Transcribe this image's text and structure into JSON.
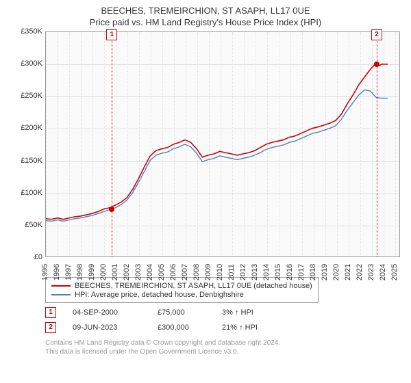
{
  "title": "BEECHES, TREMEIRCHION, ST ASAPH, LL17 0UE",
  "subtitle": "Price paid vs. HM Land Registry's House Price Index (HPI)",
  "chart": {
    "type": "line",
    "background_color": "#fafafa",
    "border_color": "#999999",
    "grid_color": "#e0e0e0",
    "ylim": [
      0,
      350
    ],
    "ytick_step": 50,
    "ytick_labels": [
      "£0",
      "£50K",
      "£100K",
      "£150K",
      "£200K",
      "£250K",
      "£300K",
      "£350K"
    ],
    "x_years": [
      1995,
      1996,
      1997,
      1998,
      1999,
      2000,
      2001,
      2002,
      2003,
      2004,
      2005,
      2006,
      2007,
      2008,
      2009,
      2010,
      2011,
      2012,
      2013,
      2014,
      2015,
      2016,
      2017,
      2018,
      2019,
      2020,
      2021,
      2022,
      2023,
      2024,
      2025
    ],
    "xlim": [
      1995,
      2025.5
    ],
    "series": [
      {
        "name": "BEECHES, TREMEIRCHION, ST ASAPH, LL17 0UE (detached house)",
        "color": "#cc0000",
        "line_width": 1.6,
        "values": [
          [
            1995,
            59
          ],
          [
            1995.5,
            58
          ],
          [
            1996,
            60
          ],
          [
            1996.5,
            58
          ],
          [
            1997,
            60
          ],
          [
            1997.5,
            62
          ],
          [
            1998,
            63
          ],
          [
            1998.5,
            65
          ],
          [
            1999,
            67
          ],
          [
            1999.5,
            70
          ],
          [
            2000,
            74
          ],
          [
            2000.5,
            76
          ],
          [
            2001,
            80
          ],
          [
            2001.5,
            85
          ],
          [
            2002,
            92
          ],
          [
            2002.5,
            105
          ],
          [
            2003,
            122
          ],
          [
            2003.5,
            140
          ],
          [
            2004,
            157
          ],
          [
            2004.5,
            165
          ],
          [
            2005,
            168
          ],
          [
            2005.5,
            170
          ],
          [
            2006,
            175
          ],
          [
            2006.5,
            178
          ],
          [
            2007,
            182
          ],
          [
            2007.5,
            178
          ],
          [
            2008,
            168
          ],
          [
            2008.5,
            155
          ],
          [
            2009,
            158
          ],
          [
            2009.5,
            160
          ],
          [
            2010,
            164
          ],
          [
            2010.5,
            162
          ],
          [
            2011,
            160
          ],
          [
            2011.5,
            158
          ],
          [
            2012,
            160
          ],
          [
            2012.5,
            162
          ],
          [
            2013,
            165
          ],
          [
            2013.5,
            170
          ],
          [
            2014,
            175
          ],
          [
            2014.5,
            178
          ],
          [
            2015,
            180
          ],
          [
            2015.5,
            182
          ],
          [
            2016,
            186
          ],
          [
            2016.5,
            188
          ],
          [
            2017,
            192
          ],
          [
            2017.5,
            196
          ],
          [
            2018,
            200
          ],
          [
            2018.5,
            202
          ],
          [
            2019,
            205
          ],
          [
            2019.5,
            208
          ],
          [
            2020,
            212
          ],
          [
            2020.5,
            222
          ],
          [
            2021,
            238
          ],
          [
            2021.5,
            252
          ],
          [
            2022,
            268
          ],
          [
            2022.5,
            280
          ],
          [
            2023,
            292
          ],
          [
            2023.4,
            300
          ],
          [
            2023.8,
            298
          ],
          [
            2024,
            300
          ],
          [
            2024.5,
            300
          ]
        ]
      },
      {
        "name": "HPI: Average price, detached house, Denbighshire",
        "color": "#4a7ec8",
        "line_width": 1.4,
        "values": [
          [
            1995,
            56
          ],
          [
            1995.5,
            55
          ],
          [
            1996,
            57
          ],
          [
            1996.5,
            55
          ],
          [
            1997,
            57
          ],
          [
            1997.5,
            59
          ],
          [
            1998,
            60
          ],
          [
            1998.5,
            62
          ],
          [
            1999,
            64
          ],
          [
            1999.5,
            67
          ],
          [
            2000,
            70
          ],
          [
            2000.5,
            73
          ],
          [
            2001,
            76
          ],
          [
            2001.5,
            81
          ],
          [
            2002,
            88
          ],
          [
            2002.5,
            100
          ],
          [
            2003,
            116
          ],
          [
            2003.5,
            133
          ],
          [
            2004,
            150
          ],
          [
            2004.5,
            158
          ],
          [
            2005,
            161
          ],
          [
            2005.5,
            163
          ],
          [
            2006,
            168
          ],
          [
            2006.5,
            171
          ],
          [
            2007,
            175
          ],
          [
            2007.5,
            171
          ],
          [
            2008,
            161
          ],
          [
            2008.5,
            148
          ],
          [
            2009,
            151
          ],
          [
            2009.5,
            153
          ],
          [
            2010,
            157
          ],
          [
            2010.5,
            155
          ],
          [
            2011,
            153
          ],
          [
            2011.5,
            151
          ],
          [
            2012,
            153
          ],
          [
            2012.5,
            155
          ],
          [
            2013,
            158
          ],
          [
            2013.5,
            162
          ],
          [
            2014,
            167
          ],
          [
            2014.5,
            170
          ],
          [
            2015,
            172
          ],
          [
            2015.5,
            174
          ],
          [
            2016,
            178
          ],
          [
            2016.5,
            180
          ],
          [
            2017,
            184
          ],
          [
            2017.5,
            188
          ],
          [
            2018,
            192
          ],
          [
            2018.5,
            194
          ],
          [
            2019,
            197
          ],
          [
            2019.5,
            200
          ],
          [
            2020,
            204
          ],
          [
            2020.5,
            214
          ],
          [
            2021,
            228
          ],
          [
            2021.5,
            240
          ],
          [
            2022,
            252
          ],
          [
            2022.5,
            260
          ],
          [
            2023,
            258
          ],
          [
            2023.5,
            248
          ],
          [
            2024,
            247
          ],
          [
            2024.5,
            247
          ]
        ]
      }
    ],
    "markers": [
      {
        "label": "1",
        "x": 2000.68,
        "y": 75
      },
      {
        "label": "2",
        "x": 2023.44,
        "y": 300
      }
    ]
  },
  "legend": {
    "items": [
      {
        "color": "#cc0000",
        "label": "BEECHES, TREMEIRCHION, ST ASAPH, LL17 0UE (detached house)"
      },
      {
        "color": "#4a7ec8",
        "label": "HPI: Average price, detached house, Denbighshire"
      }
    ]
  },
  "notes": [
    {
      "marker": "1",
      "date": "04-SEP-2000",
      "price": "£75,000",
      "pct": "3%",
      "arrow": "↑",
      "suffix": "HPI"
    },
    {
      "marker": "2",
      "date": "09-JUN-2023",
      "price": "£300,000",
      "pct": "21%",
      "arrow": "↑",
      "suffix": "HPI"
    }
  ],
  "footer": {
    "line1": "Contains HM Land Registry data © Crown copyright and database right 2024.",
    "line2": "This data is licensed under the Open Government Licence v3.0."
  },
  "style": {
    "title_fontsize": 13,
    "axis_fontsize": 11,
    "legend_fontsize": 11,
    "footer_fontsize": 10,
    "footer_color": "#999999",
    "text_color": "#333333"
  }
}
